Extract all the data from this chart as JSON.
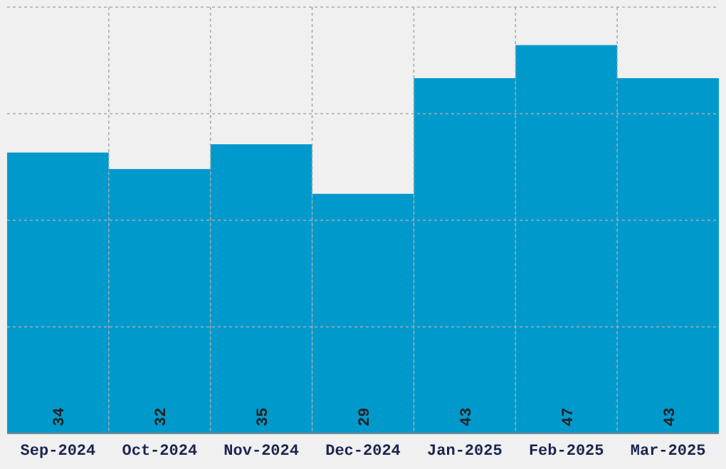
{
  "chart_data": {
    "type": "bar",
    "categories": [
      "Sep-2024",
      "Oct-2024",
      "Nov-2024",
      "Dec-2024",
      "Jan-2025",
      "Feb-2025",
      "Mar-2025"
    ],
    "values": [
      34,
      32,
      35,
      29,
      43,
      47,
      43
    ],
    "color": "#0099cc",
    "data_labels": true,
    "grid": true,
    "ylim": [
      0,
      51.6
    ],
    "yticks": [
      {
        "value": 0,
        "label": null
      },
      {
        "value": 12.9,
        "label": null
      },
      {
        "value": 25.8,
        "label": null
      },
      {
        "value": 38.7,
        "label": null
      },
      {
        "value": 51.6,
        "label": null
      }
    ],
    "tick_labels": "x"
  }
}
